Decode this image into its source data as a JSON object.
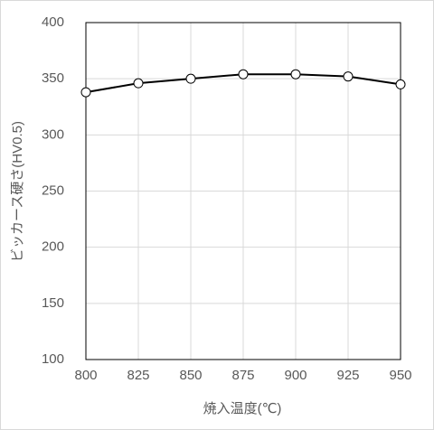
{
  "chart_data": {
    "type": "line",
    "x_label": "焼入温度(℃)",
    "y_label": "ビッカース硬さ(HV0.5)",
    "x": [
      800,
      825,
      850,
      875,
      900,
      925,
      950
    ],
    "series": [
      {
        "color": "#000000",
        "values": [
          338,
          346,
          350,
          354,
          354,
          352,
          345
        ]
      }
    ],
    "xlim": [
      800,
      950
    ],
    "xticks": [
      800,
      825,
      850,
      875,
      900,
      925,
      950
    ],
    "ylim": [
      100,
      400
    ],
    "yticks": [
      100,
      150,
      200,
      250,
      300,
      350,
      400
    ],
    "grid": true,
    "markers": true
  }
}
